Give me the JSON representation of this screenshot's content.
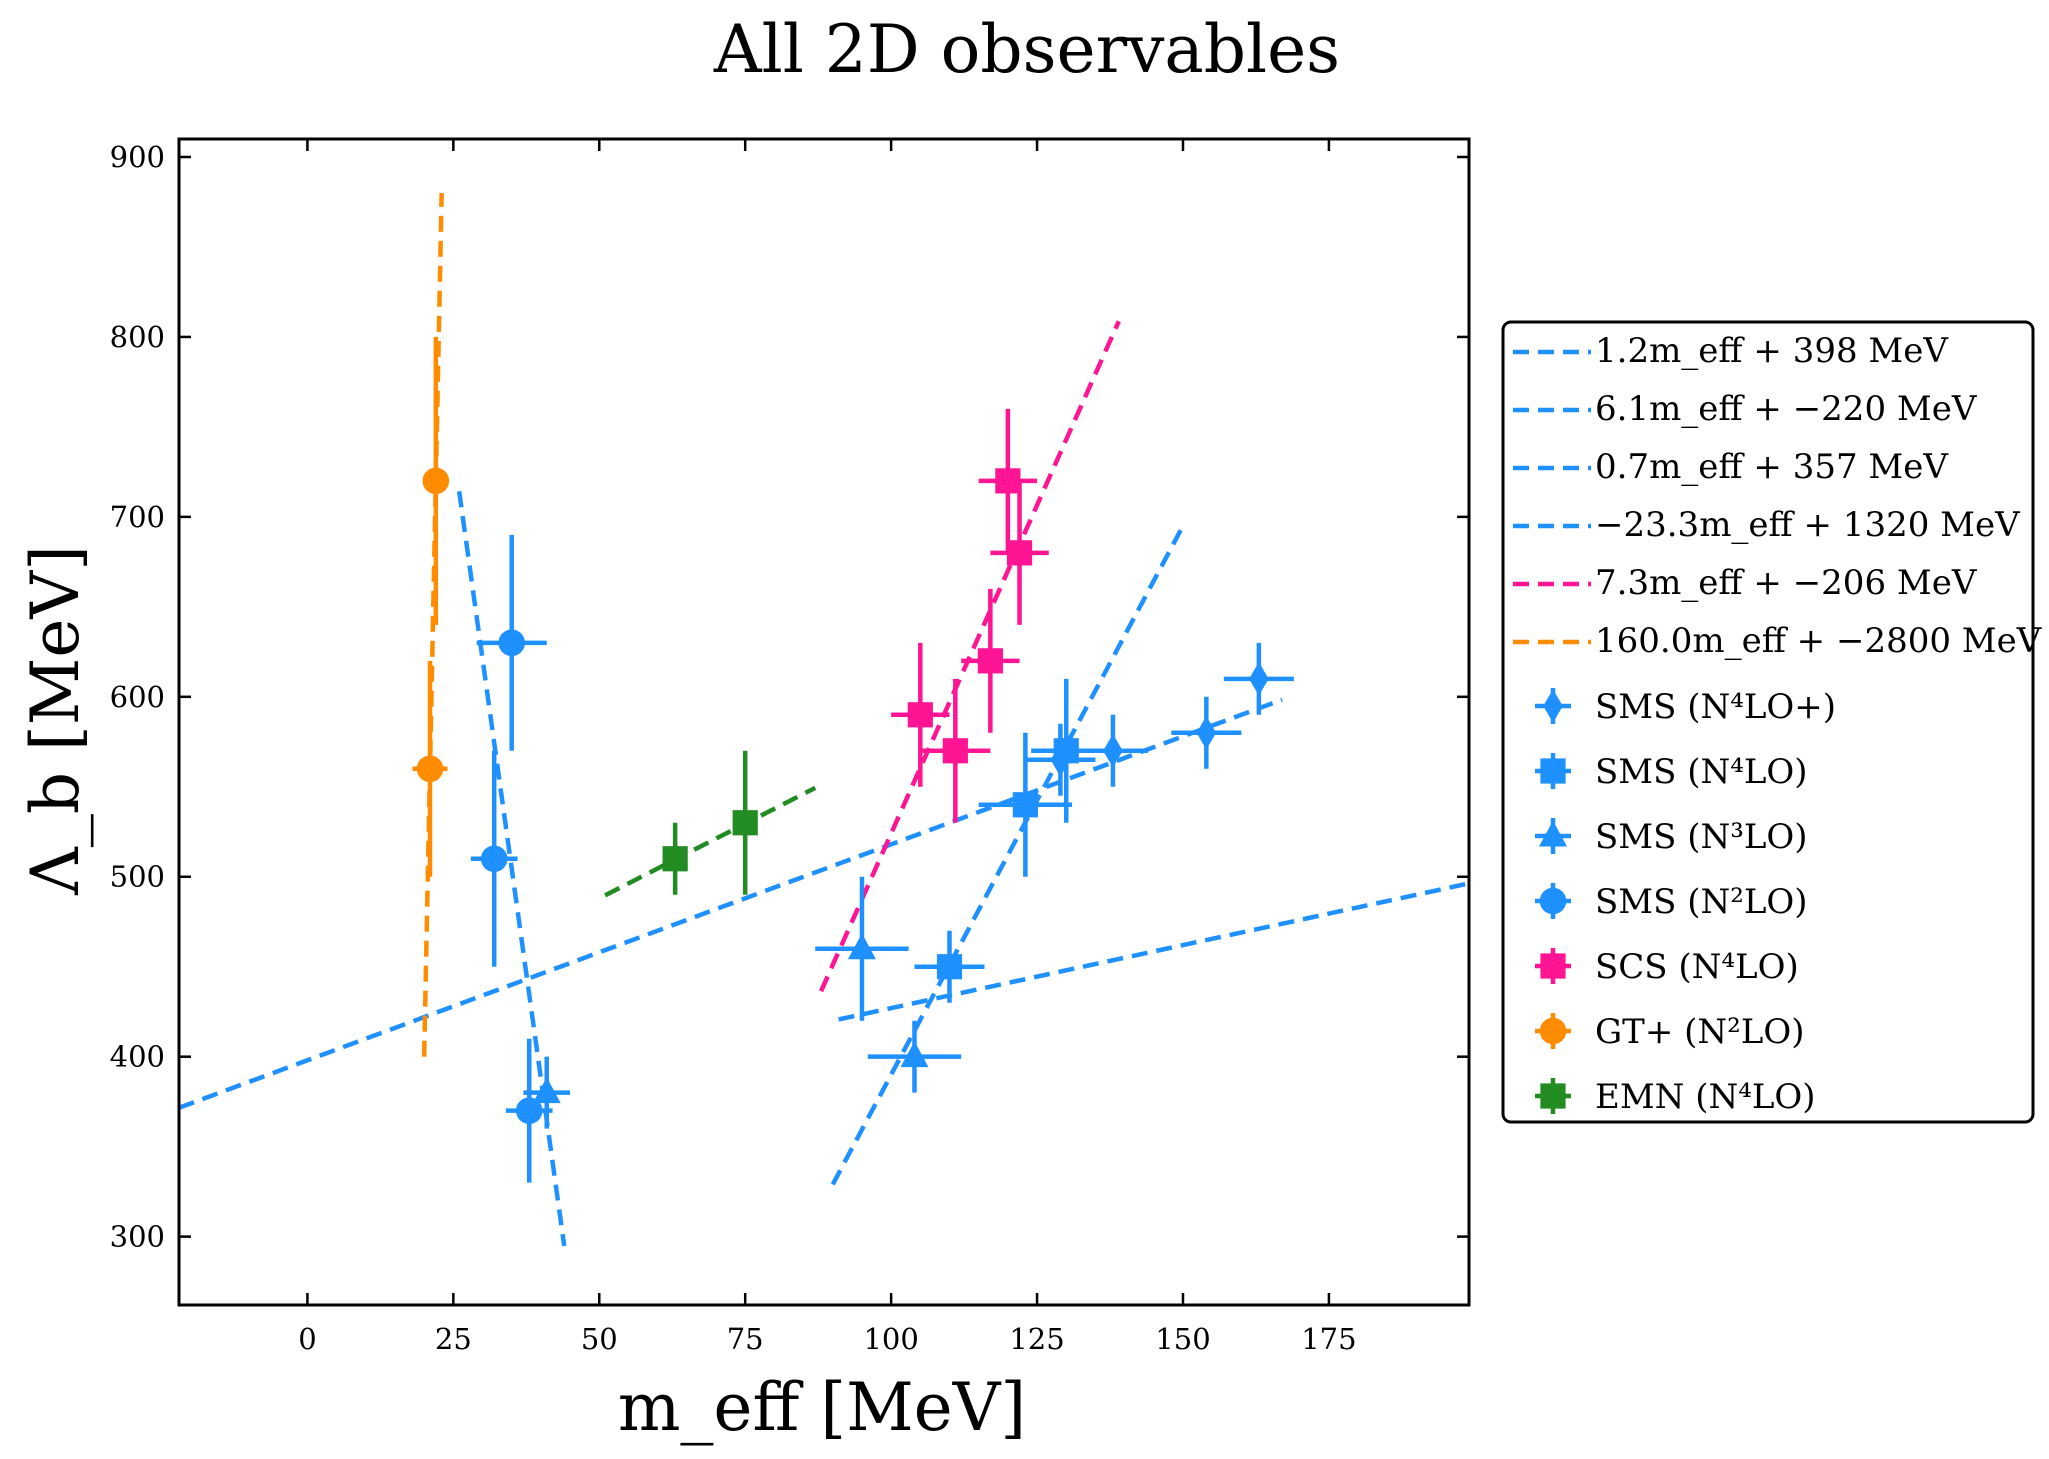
{
  "chart_data": {
    "type": "scatter",
    "title": "All 2D observables",
    "xlabel": "m_eff [MeV]",
    "ylabel": "Λ_b [MeV]",
    "xlim": [
      -22,
      199
    ],
    "ylim": [
      262,
      910
    ],
    "xticks": [
      0,
      25,
      50,
      75,
      100,
      125,
      150,
      175
    ],
    "yticks": [
      300,
      400,
      500,
      600,
      700,
      800,
      900
    ],
    "grid": false,
    "legend_position": "outside-right",
    "fits": [
      {
        "name": "1.2m_eff + 398 MeV",
        "color": "#1e90ff",
        "x_range": [
          -22,
          167
        ],
        "slope": 1.2,
        "intercept": 398
      },
      {
        "name": "6.1m_eff + −220 MeV",
        "color": "#1e90ff",
        "x_range": [
          90,
          150
        ],
        "slope": 6.1,
        "intercept": -220
      },
      {
        "name": "0.7m_eff + 357 MeV",
        "color": "#1e90ff",
        "x_range": [
          91,
          199
        ],
        "slope": 0.7,
        "intercept": 357
      },
      {
        "name": "−23.3m_eff + 1320 MeV",
        "color": "#1e90ff",
        "x_range": [
          26,
          44
        ],
        "slope": -23.3,
        "intercept": 1320
      },
      {
        "name": "7.3m_eff + −206 MeV",
        "color": "#ff1493",
        "x_range": [
          88,
          139
        ],
        "slope": 7.3,
        "intercept": -206
      },
      {
        "name": "160.0m_eff + −2800 MeV",
        "color": "#ff8c00",
        "x_range": [
          20,
          23
        ],
        "slope": 160.0,
        "intercept": -2800
      }
    ],
    "unlabeled_fit": {
      "color": "#228b22",
      "x_range": [
        51,
        87
      ],
      "slope": 1.66,
      "intercept": 405
    },
    "series": [
      {
        "name": "SMS (N⁴LO+)",
        "color": "#1e90ff",
        "marker": "diamond",
        "points": [
          [
            163,
            610,
            6,
            20
          ],
          [
            154,
            580,
            6,
            20
          ],
          [
            138,
            570,
            6,
            20
          ],
          [
            129,
            565,
            6,
            20
          ]
        ]
      },
      {
        "name": "SMS (N⁴LO)",
        "color": "#1e90ff",
        "marker": "square",
        "points": [
          [
            130,
            570,
            6,
            40
          ],
          [
            123,
            540,
            8,
            40
          ],
          [
            110,
            450,
            6,
            20
          ]
        ]
      },
      {
        "name": "SMS (N³LO)",
        "color": "#1e90ff",
        "marker": "triangle",
        "points": [
          [
            95,
            460,
            8,
            40
          ],
          [
            104,
            400,
            8,
            20
          ],
          [
            41,
            380,
            4,
            20
          ]
        ]
      },
      {
        "name": "SMS (N²LO)",
        "color": "#1e90ff",
        "marker": "circle",
        "points": [
          [
            35,
            630,
            6,
            60
          ],
          [
            32,
            510,
            4,
            60
          ],
          [
            38,
            370,
            4,
            40
          ]
        ]
      },
      {
        "name": "SCS (N⁴LO)",
        "color": "#ff1493",
        "marker": "square",
        "points": [
          [
            120,
            720,
            5,
            40
          ],
          [
            122,
            680,
            5,
            40
          ],
          [
            117,
            620,
            5,
            40
          ],
          [
            105,
            590,
            5,
            40
          ],
          [
            111,
            570,
            6,
            40
          ]
        ]
      },
      {
        "name": "GT+ (N²LO)",
        "color": "#ff8c00",
        "marker": "circle",
        "points": [
          [
            22,
            720,
            1,
            80
          ],
          [
            21,
            560,
            3,
            60
          ]
        ]
      },
      {
        "name": "EMN (N⁴LO)",
        "color": "#228b22",
        "marker": "square",
        "points": [
          [
            75,
            530,
            1,
            40
          ],
          [
            63,
            510,
            1,
            20
          ]
        ]
      }
    ]
  }
}
